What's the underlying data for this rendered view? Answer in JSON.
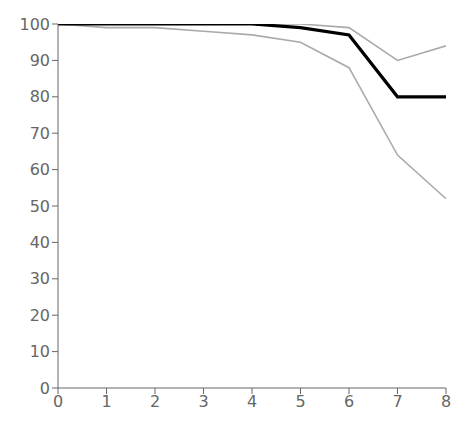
{
  "chart_data": {
    "type": "line",
    "x": [
      0,
      1,
      2,
      3,
      4,
      5,
      6,
      7,
      8
    ],
    "series": [
      {
        "color": "#aaaaaa",
        "values": [
          100,
          100,
          100,
          100,
          100,
          100,
          99,
          90,
          94
        ]
      },
      {
        "color": "#aaaaaa",
        "values": [
          100,
          99,
          99,
          98,
          97,
          95,
          88,
          64,
          52
        ]
      },
      {
        "color": "#000000",
        "values": [
          100,
          100,
          100,
          100,
          100,
          99,
          97,
          80,
          80
        ]
      }
    ],
    "xlim": [
      0,
      8
    ],
    "ylim": [
      0,
      100
    ],
    "xticks": [
      0,
      1,
      2,
      3,
      4,
      5,
      6,
      7,
      8
    ],
    "yticks": [
      0,
      10,
      20,
      30,
      40,
      50,
      60,
      70,
      80,
      90,
      100
    ],
    "grid": false
  }
}
